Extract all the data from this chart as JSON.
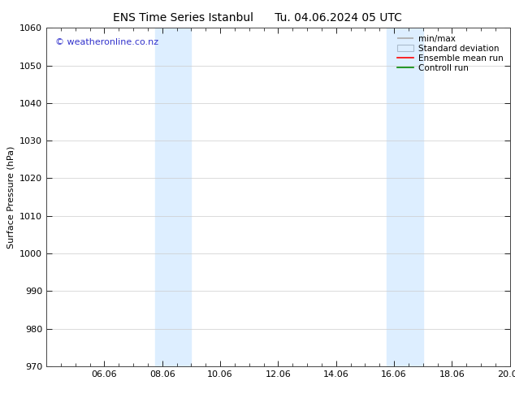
{
  "title_left": "ENS Time Series Istanbul",
  "title_right": "Tu. 04.06.2024 05 UTC",
  "ylabel": "Surface Pressure (hPa)",
  "ylim": [
    970,
    1060
  ],
  "yticks": [
    970,
    980,
    990,
    1000,
    1010,
    1020,
    1030,
    1040,
    1050,
    1060
  ],
  "xtick_labels": [
    "06.06",
    "08.06",
    "10.06",
    "12.06",
    "14.06",
    "16.06",
    "18.06",
    "20.06"
  ],
  "xlim": [
    0,
    16
  ],
  "xtick_positions": [
    2,
    4,
    6,
    8,
    10,
    12,
    14,
    16
  ],
  "shaded_bands": [
    {
      "start": 3.75,
      "end": 5.0
    },
    {
      "start": 11.75,
      "end": 13.0
    }
  ],
  "shade_color": "#ddeeff",
  "watermark_text": "© weatheronline.co.nz",
  "watermark_color": "#3333cc",
  "bg_color": "#ffffff",
  "grid_color": "#cccccc",
  "title_fontsize": 10,
  "label_fontsize": 8,
  "tick_fontsize": 8,
  "watermark_fontsize": 8,
  "legend_fontsize": 7.5
}
